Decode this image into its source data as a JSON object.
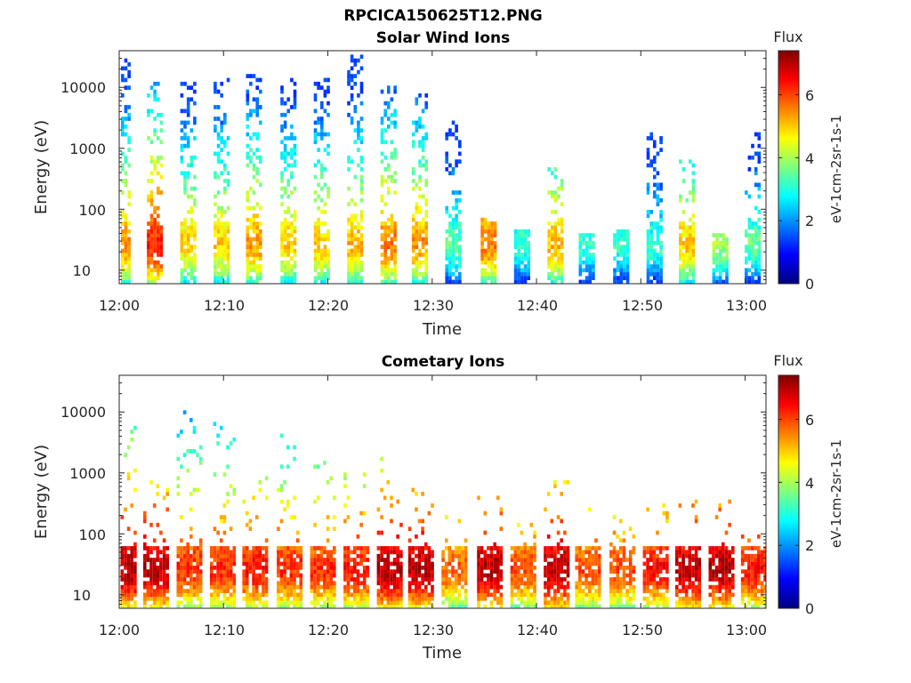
{
  "figure_title": "RPCICA150625T12.PNG",
  "colors": {
    "frame": "#262626",
    "colormap": [
      "#00007f",
      "#0000ff",
      "#007fff",
      "#00ffff",
      "#7fff7f",
      "#ffff00",
      "#ff7f00",
      "#ff0000",
      "#7f0000"
    ]
  },
  "chart_data": [
    {
      "type": "heatmap",
      "title": "Solar Wind Ions",
      "xlabel": "Time",
      "ylabel": "Energy (eV)",
      "x_ticks": [
        "12:00",
        "12:10",
        "12:20",
        "12:30",
        "12:40",
        "12:50",
        "13:00"
      ],
      "x_tick_minutes": [
        0,
        10,
        20,
        30,
        40,
        50,
        60
      ],
      "xlim_minutes": [
        0,
        62
      ],
      "y_scale": "log",
      "y_ticks": [
        10,
        100,
        1000,
        10000
      ],
      "y_tick_labels": [
        "10",
        "100",
        "1000",
        "10000"
      ],
      "ylim": [
        6,
        40000
      ],
      "colorbar": {
        "title": "Flux",
        "label": "eV-1cm-2sr-1s-1",
        "range": [
          0,
          7.4
        ],
        "ticks": [
          0,
          2,
          4,
          6
        ],
        "tick_labels": [
          "0",
          "2",
          "4",
          "6"
        ]
      },
      "bursts": [
        {
          "t": 0.3,
          "flux_peak": 5.4,
          "e_max": 30000
        },
        {
          "t": 3.4,
          "flux_peak": 6.3,
          "e_max": 15000
        },
        {
          "t": 6.6,
          "flux_peak": 5.0,
          "e_max": 15000
        },
        {
          "t": 9.8,
          "flux_peak": 5.0,
          "e_max": 15000
        },
        {
          "t": 12.9,
          "flux_peak": 5.4,
          "e_max": 17000
        },
        {
          "t": 16.2,
          "flux_peak": 5.0,
          "e_max": 15000
        },
        {
          "t": 19.4,
          "flux_peak": 5.0,
          "e_max": 15000
        },
        {
          "t": 22.6,
          "flux_peak": 5.2,
          "e_max": 35000
        },
        {
          "t": 25.8,
          "flux_peak": 5.6,
          "e_max": 10000
        },
        {
          "t": 28.8,
          "flux_peak": 5.4,
          "e_max": 8000
        },
        {
          "t": 32.0,
          "flux_peak": 3.5,
          "e_max": 3000
        },
        {
          "t": 35.4,
          "flux_peak": 5.6,
          "e_max": 100
        },
        {
          "t": 38.6,
          "flux_peak": 3.2,
          "e_max": 50
        },
        {
          "t": 41.8,
          "flux_peak": 5.2,
          "e_max": 600
        },
        {
          "t": 44.8,
          "flux_peak": 3.2,
          "e_max": 40
        },
        {
          "t": 48.1,
          "flux_peak": 3.2,
          "e_max": 50
        },
        {
          "t": 51.3,
          "flux_peak": 3.2,
          "e_max": 2000
        },
        {
          "t": 54.4,
          "flux_peak": 5.0,
          "e_max": 700
        },
        {
          "t": 57.6,
          "flux_peak": 4.0,
          "e_max": 40
        },
        {
          "t": 60.7,
          "flux_peak": 3.5,
          "e_max": 1800
        }
      ]
    },
    {
      "type": "heatmap",
      "title": "Cometary Ions",
      "xlabel": "Time",
      "ylabel": "Energy (eV)",
      "x_ticks": [
        "12:00",
        "12:10",
        "12:20",
        "12:30",
        "12:40",
        "12:50",
        "13:00"
      ],
      "x_tick_minutes": [
        0,
        10,
        20,
        30,
        40,
        50,
        60
      ],
      "xlim_minutes": [
        0,
        62
      ],
      "y_scale": "log",
      "y_ticks": [
        10,
        100,
        1000,
        10000
      ],
      "y_tick_labels": [
        "10",
        "100",
        "1000",
        "10000"
      ],
      "ylim": [
        6,
        40000
      ],
      "colorbar": {
        "title": "Flux",
        "label": "eV-1cm-2sr-1s-1",
        "range": [
          0,
          7.4
        ],
        "ticks": [
          0,
          2,
          4,
          6
        ],
        "tick_labels": [
          "0",
          "2",
          "4",
          "6"
        ]
      },
      "bursts": [
        {
          "t": 0.3,
          "flux_peak": 7.0,
          "e_max": 6500
        },
        {
          "t": 3.4,
          "flux_peak": 7.0,
          "e_max": 800
        },
        {
          "t": 6.6,
          "flux_peak": 6.2,
          "e_max": 11000
        },
        {
          "t": 9.8,
          "flux_peak": 6.2,
          "e_max": 8500
        },
        {
          "t": 12.9,
          "flux_peak": 6.4,
          "e_max": 900
        },
        {
          "t": 16.2,
          "flux_peak": 6.2,
          "e_max": 4500
        },
        {
          "t": 19.4,
          "flux_peak": 6.2,
          "e_max": 2000
        },
        {
          "t": 22.6,
          "flux_peak": 6.4,
          "e_max": 1000
        },
        {
          "t": 25.8,
          "flux_peak": 7.0,
          "e_max": 1800
        },
        {
          "t": 28.8,
          "flux_peak": 7.0,
          "e_max": 600
        },
        {
          "t": 32.0,
          "flux_peak": 5.8,
          "e_max": 200
        },
        {
          "t": 35.4,
          "flux_peak": 7.0,
          "e_max": 400
        },
        {
          "t": 38.6,
          "flux_peak": 6.0,
          "e_max": 200
        },
        {
          "t": 41.8,
          "flux_peak": 7.0,
          "e_max": 800
        },
        {
          "t": 44.8,
          "flux_peak": 6.0,
          "e_max": 400
        },
        {
          "t": 48.1,
          "flux_peak": 6.0,
          "e_max": 200
        },
        {
          "t": 51.3,
          "flux_peak": 6.4,
          "e_max": 300
        },
        {
          "t": 54.4,
          "flux_peak": 7.0,
          "e_max": 400
        },
        {
          "t": 57.6,
          "flux_peak": 7.0,
          "e_max": 600
        },
        {
          "t": 60.7,
          "flux_peak": 6.4,
          "e_max": 100
        }
      ]
    }
  ]
}
